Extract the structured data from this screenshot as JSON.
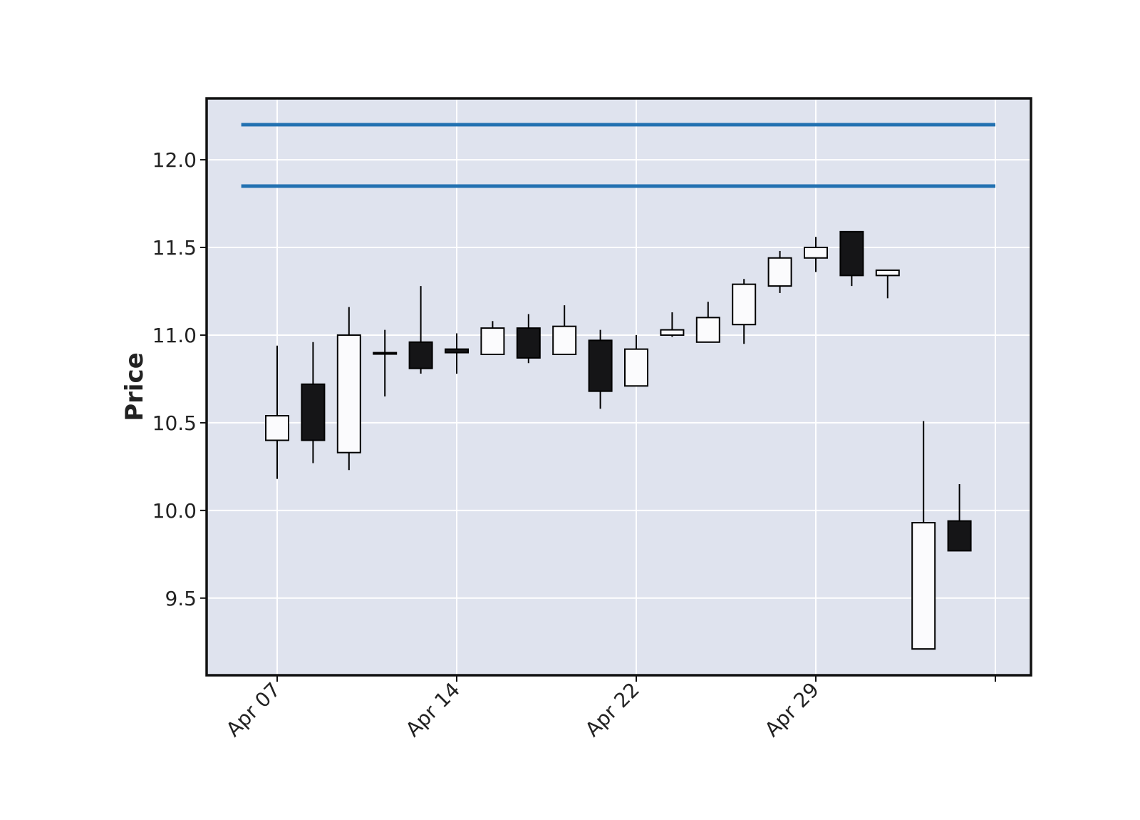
{
  "chart_data": {
    "type": "candlestick",
    "title": "",
    "xlabel": "",
    "ylabel": "Price",
    "ylim": [
      9.06,
      12.35
    ],
    "grid": true,
    "colors": {
      "background": "#dfe3ee",
      "grid": "#ffffff",
      "up_fill": "#fbfbfd",
      "down_fill": "#151517",
      "edge": "#000000",
      "hline": "#2271b1"
    },
    "x_ticks": [
      {
        "index": 0,
        "label": "Apr 07"
      },
      {
        "index": 5,
        "label": "Apr 14"
      },
      {
        "index": 10,
        "label": "Apr 22"
      },
      {
        "index": 15,
        "label": "Apr 29"
      },
      {
        "index": 20,
        "label": ""
      }
    ],
    "y_ticks": [
      {
        "value": 9.5,
        "label": "9.5"
      },
      {
        "value": 10.0,
        "label": "10.0"
      },
      {
        "value": 10.5,
        "label": "10.5"
      },
      {
        "value": 11.0,
        "label": "11.0"
      },
      {
        "value": 11.5,
        "label": "11.5"
      },
      {
        "value": 12.0,
        "label": "12.0"
      }
    ],
    "hlines": [
      12.2,
      11.85
    ],
    "candles": [
      {
        "open": 10.4,
        "high": 10.94,
        "low": 10.18,
        "close": 10.54
      },
      {
        "open": 10.72,
        "high": 10.96,
        "low": 10.27,
        "close": 10.4
      },
      {
        "open": 10.33,
        "high": 11.16,
        "low": 10.23,
        "close": 11.0
      },
      {
        "open": 10.9,
        "high": 11.03,
        "low": 10.65,
        "close": 10.9
      },
      {
        "open": 10.96,
        "high": 11.28,
        "low": 10.78,
        "close": 10.81
      },
      {
        "open": 10.92,
        "high": 11.01,
        "low": 10.78,
        "close": 10.9
      },
      {
        "open": 10.89,
        "high": 11.08,
        "low": 10.89,
        "close": 11.04
      },
      {
        "open": 11.04,
        "high": 11.12,
        "low": 10.84,
        "close": 10.87
      },
      {
        "open": 10.89,
        "high": 11.17,
        "low": 10.89,
        "close": 11.05
      },
      {
        "open": 10.97,
        "high": 11.03,
        "low": 10.58,
        "close": 10.68
      },
      {
        "open": 10.71,
        "high": 11.0,
        "low": 10.71,
        "close": 10.92
      },
      {
        "open": 11.0,
        "high": 11.13,
        "low": 10.99,
        "close": 11.03
      },
      {
        "open": 10.96,
        "high": 11.19,
        "low": 10.96,
        "close": 11.1
      },
      {
        "open": 11.06,
        "high": 11.32,
        "low": 10.95,
        "close": 11.29
      },
      {
        "open": 11.28,
        "high": 11.48,
        "low": 11.24,
        "close": 11.44
      },
      {
        "open": 11.44,
        "high": 11.56,
        "low": 11.36,
        "close": 11.5
      },
      {
        "open": 11.59,
        "high": 11.59,
        "low": 11.28,
        "close": 11.34
      },
      {
        "open": 11.34,
        "high": 11.37,
        "low": 11.21,
        "close": 11.37
      },
      {
        "open": 9.21,
        "high": 10.51,
        "low": 9.21,
        "close": 9.93
      },
      {
        "open": 9.94,
        "high": 10.15,
        "low": 9.77,
        "close": 9.77
      }
    ]
  }
}
